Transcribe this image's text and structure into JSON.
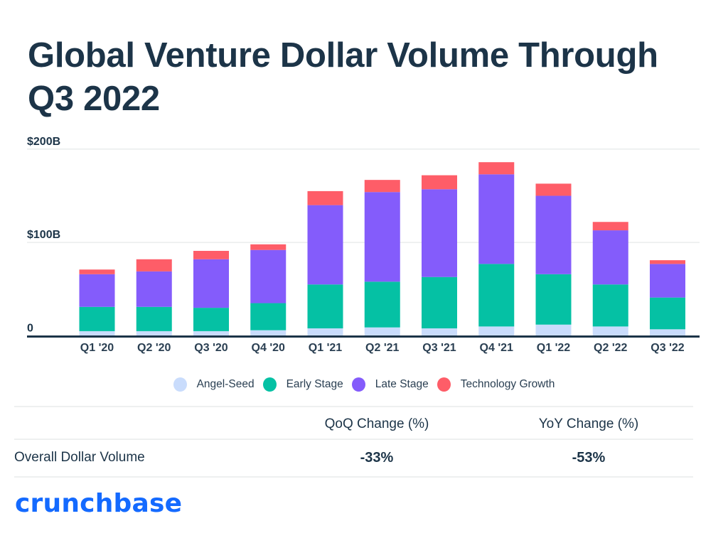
{
  "title": "Global Venture Dollar Volume Through Q3 2022",
  "chart_data": {
    "type": "bar",
    "stacked": true,
    "title": "Global Venture Dollar Volume Through Q3 2022",
    "xlabel": "",
    "ylabel": "",
    "ylim": [
      0,
      200
    ],
    "yticks": [
      0,
      100,
      200
    ],
    "ytick_labels": [
      "0",
      "$100B",
      "$200B"
    ],
    "grid": true,
    "legend_position": "bottom-center",
    "categories": [
      "Q1 '20",
      "Q2 '20",
      "Q3 '20",
      "Q4 '20",
      "Q1 '21",
      "Q2 '21",
      "Q3 '21",
      "Q4 '21",
      "Q1 '22",
      "Q2 '22",
      "Q3 '22"
    ],
    "series": [
      {
        "name": "Angel-Seed",
        "color": "#c9dcfc",
        "values": [
          5,
          5,
          5,
          6,
          8,
          9,
          8,
          10,
          12,
          10,
          7
        ]
      },
      {
        "name": "Early Stage",
        "color": "#05c1a4",
        "values": [
          26,
          26,
          25,
          29,
          47,
          49,
          55,
          67,
          54,
          45,
          34
        ]
      },
      {
        "name": "Late Stage",
        "color": "#845cfb",
        "values": [
          35,
          38,
          52,
          57,
          85,
          96,
          94,
          96,
          84,
          58,
          36
        ]
      },
      {
        "name": "Technology Growth",
        "color": "#fe5d68",
        "values": [
          5,
          13,
          9,
          6,
          15,
          13,
          15,
          13,
          13,
          9,
          4
        ]
      }
    ]
  },
  "table": {
    "headers": [
      "",
      "QoQ Change (%)",
      "YoY Change (%)"
    ],
    "rows": [
      {
        "label": "Overall Dollar Volume",
        "qoq": "-33%",
        "yoy": "-53%"
      }
    ]
  },
  "brand": {
    "logo_text": "crunchbase",
    "color": "#146aff"
  }
}
